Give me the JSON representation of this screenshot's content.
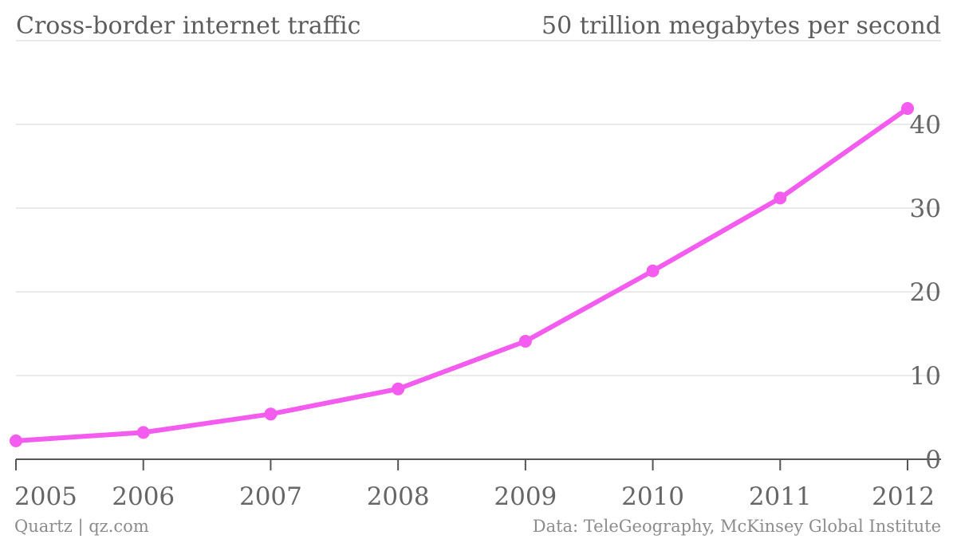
{
  "chart_data": {
    "type": "line",
    "title": "Cross-border internet traffic",
    "subtitle": "50 trillion megabytes per second",
    "x": [
      "2005",
      "2006",
      "2007",
      "2008",
      "2009",
      "2010",
      "2011",
      "2012"
    ],
    "series": [
      {
        "values": [
          2.2,
          3.2,
          5.4,
          8.4,
          14.1,
          22.5,
          31.2,
          41.9
        ],
        "color": "#f45cf0"
      }
    ],
    "ylim": [
      0,
      50
    ],
    "yticks": [
      "0",
      "10",
      "20",
      "30",
      "40"
    ],
    "grid": true,
    "y_axis_side": "right"
  },
  "footer": {
    "source_left": "Quartz | qz.com",
    "source_right": "Data: TeleGeography, McKinsey Global Institute"
  }
}
